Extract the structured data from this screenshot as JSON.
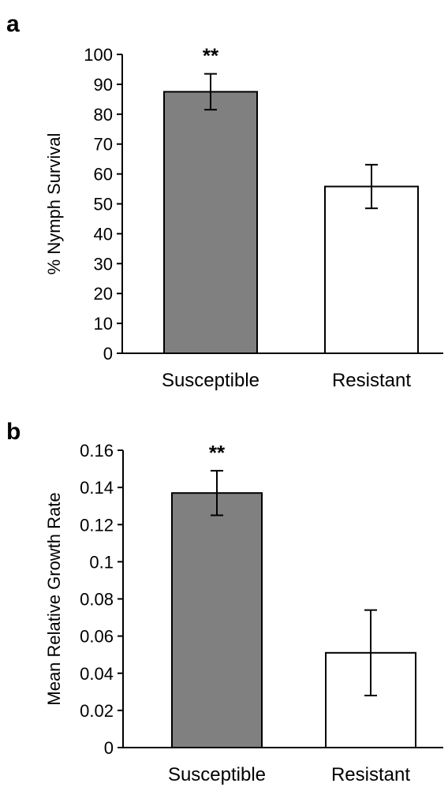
{
  "chart_data": [
    {
      "panel": "a",
      "type": "bar",
      "categories": [
        "Susceptible",
        "Resistant"
      ],
      "values": [
        87.5,
        55.8
      ],
      "errors": [
        6.0,
        7.3
      ],
      "annotations": [
        "**",
        ""
      ],
      "bar_colors": [
        "#808080",
        "#ffffff"
      ],
      "ylabel": "% Nymph Survival",
      "ylim": [
        0,
        100
      ],
      "yticks": [
        0,
        10,
        20,
        30,
        40,
        50,
        60,
        70,
        80,
        90,
        100
      ],
      "ytick_labels": [
        "0",
        "10",
        "20",
        "30",
        "40",
        "50",
        "60",
        "70",
        "80",
        "90",
        "100"
      ],
      "grid": false,
      "legend": "none"
    },
    {
      "panel": "b",
      "type": "bar",
      "categories": [
        "Susceptible",
        "Resistant"
      ],
      "values": [
        0.137,
        0.051
      ],
      "errors": [
        0.012,
        0.023
      ],
      "annotations": [
        "**",
        ""
      ],
      "bar_colors": [
        "#808080",
        "#ffffff"
      ],
      "ylabel": "Mean Relative Growth Rate",
      "ylim": [
        0,
        0.16
      ],
      "yticks": [
        0,
        0.02,
        0.04,
        0.06,
        0.08,
        0.1,
        0.12,
        0.14,
        0.16
      ],
      "ytick_labels": [
        "0",
        "0.02",
        "0.04",
        "0.06",
        "0.08",
        "0.1",
        "0.12",
        "0.14",
        "0.16"
      ],
      "grid": false,
      "legend": "none"
    }
  ]
}
